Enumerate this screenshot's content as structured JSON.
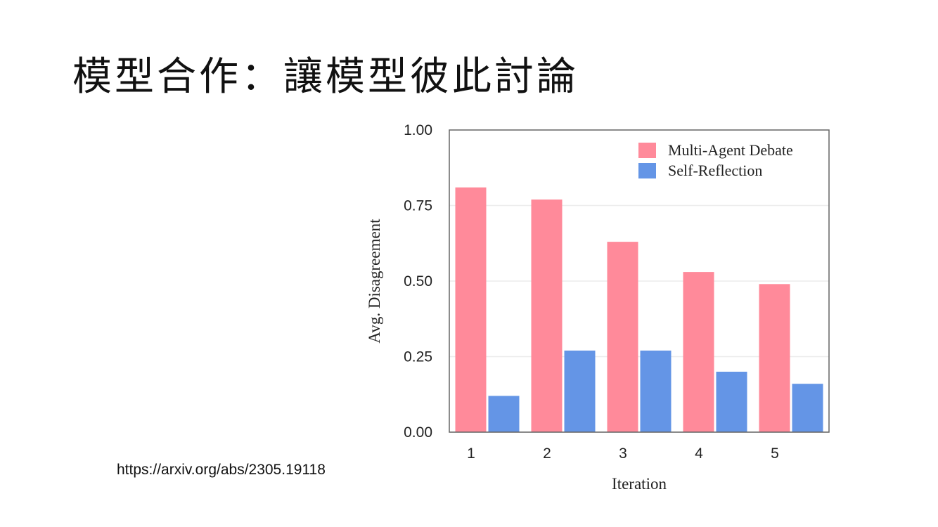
{
  "slide": {
    "title": "模型合作：讓模型彼此討論",
    "source_url": "https://arxiv.org/abs/2305.19118"
  },
  "chart_data": {
    "type": "bar",
    "categories": [
      "1",
      "2",
      "3",
      "4",
      "5"
    ],
    "series": [
      {
        "name": "Multi-Agent Debate",
        "color": "#FF8A9A",
        "values": [
          0.81,
          0.77,
          0.63,
          0.53,
          0.49
        ]
      },
      {
        "name": "Self-Reflection",
        "color": "#6495E6",
        "values": [
          0.12,
          0.27,
          0.27,
          0.2,
          0.16
        ]
      }
    ],
    "xlabel": "Iteration",
    "ylabel": "Avg. Disagreement",
    "ylim": [
      0,
      1
    ],
    "yticks": [
      "0.00",
      "0.25",
      "0.50",
      "0.75",
      "1.00"
    ],
    "grid": true,
    "legend": "top-right"
  }
}
